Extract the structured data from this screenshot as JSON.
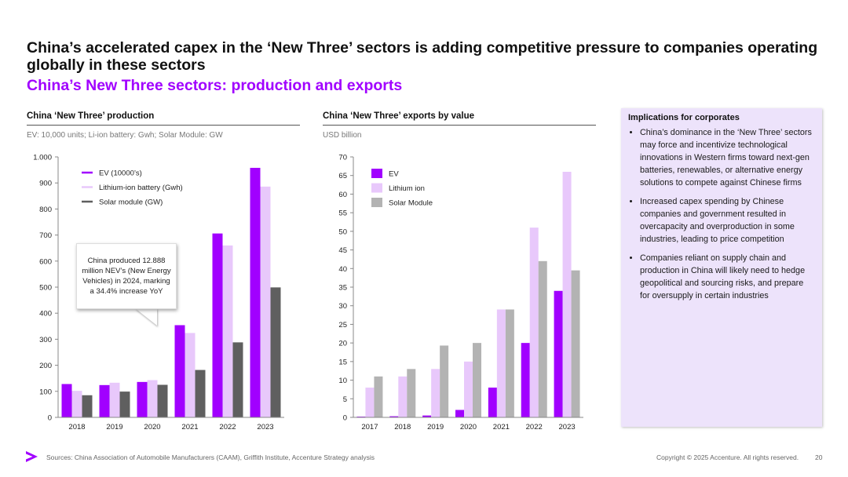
{
  "title": "China’s accelerated capex in the ‘New Three’ sectors is adding competitive pressure to companies operating globally in these sectors",
  "subtitle": "China’s New Three sectors: production and exports",
  "colors": {
    "ev": "#a100ff",
    "battery": "#e8c8fb",
    "solar": "#5f5f5f",
    "solar_export": "#b3b3b3",
    "accent": "#a100ff"
  },
  "chart_data": [
    {
      "type": "bar",
      "title": "China ‘New Three’ production",
      "subtitle": "EV: 10,000 units; Li-ion battery: Gwh; Solar Module: GW",
      "categories": [
        "2018",
        "2019",
        "2020",
        "2021",
        "2022",
        "2023"
      ],
      "series": [
        {
          "name": "EV (10000’s)",
          "values": [
            128,
            124,
            136,
            354,
            706,
            958
          ]
        },
        {
          "name": "Lithium-ion battery (Gwh)",
          "values": [
            102,
            133,
            143,
            324,
            660,
            886
          ]
        },
        {
          "name": "Solar module (GW)",
          "values": [
            85,
            99,
            125,
            182,
            288,
            499
          ]
        }
      ],
      "ylim": [
        0,
        1000
      ],
      "yticks": [
        0,
        100,
        200,
        300,
        400,
        500,
        600,
        700,
        800,
        900,
        1000
      ],
      "ytick_labels": [
        "0",
        "100",
        "200",
        "300",
        "400",
        "500",
        "600",
        "700",
        "800",
        "900",
        "1.000"
      ],
      "legend_position": "top-left",
      "annotation": "China produced 12.888 million NEV’s (New Energy Vehicles) in 2024, marking a 34.4% increase YoY"
    },
    {
      "type": "bar",
      "title": "China ‘New Three’ exports by value",
      "subtitle": "USD billion",
      "categories": [
        "2017",
        "2018",
        "2019",
        "2020",
        "2021",
        "2022",
        "2023"
      ],
      "series": [
        {
          "name": "EV",
          "values": [
            0.2,
            0.3,
            0.5,
            2,
            8,
            20,
            34
          ]
        },
        {
          "name": "Lithium ion",
          "values": [
            8,
            11,
            13,
            15,
            29,
            51,
            66
          ]
        },
        {
          "name": "Solar Module",
          "values": [
            11,
            13,
            19.3,
            20,
            29,
            42,
            39.5
          ]
        }
      ],
      "ylim": [
        0,
        70
      ],
      "yticks": [
        0,
        5,
        10,
        15,
        20,
        25,
        30,
        35,
        40,
        45,
        50,
        55,
        60,
        65,
        70
      ],
      "ytick_labels": [
        "0",
        "5",
        "10",
        "15",
        "20",
        "25",
        "30",
        "35",
        "40",
        "45",
        "50",
        "55",
        "60",
        "65",
        "70"
      ],
      "legend_position": "top-left"
    }
  ],
  "panel": {
    "title": "Implications for corporates",
    "bullets": [
      "China’s dominance in the ‘New Three’ sectors may force and incentivize technological innovations in Western firms toward next-gen batteries, renewables, or alternative energy solutions to compete against Chinese firms",
      "Increased capex spending by Chinese companies and government resulted in overcapacity and overproduction in some industries, leading to price competition",
      "Companies reliant on supply chain and production in China will likely need to hedge geopolitical and sourcing risks, and prepare for oversupply in certain industries"
    ]
  },
  "footer": {
    "sources": "Sources: China Association of Automobile Manufacturers (CAAM), Griffith Institute, Accenture Strategy analysis",
    "copyright": "Copyright © 2025 Accenture. All rights reserved.",
    "page": "20"
  }
}
